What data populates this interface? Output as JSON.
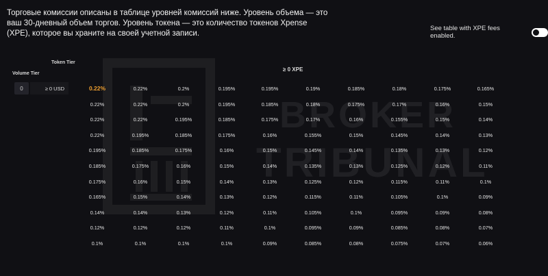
{
  "intro_text": "Торговые комиссии описаны в таблице уровней комиссий ниже. Уровень объема — это ваш 30-дневный объем торгов. Уровень токена — это количество токенов Xpense (XPE), которое вы храните на своей учетной записи.",
  "toggle": {
    "label": "See table with XPE fees enabled.",
    "enabled": false
  },
  "table": {
    "token_tier_header": "Token Tier",
    "volume_tier_header": "Volume Tier",
    "xpe_header": "≥ 0 XPE",
    "volume_value": "0",
    "usd_label": "≥ 0  USD",
    "highlight_color": "#f0a030",
    "rows": [
      [
        "0.22%",
        "0.22%",
        "0.2%",
        "0.195%",
        "0.195%",
        "0.19%",
        "0.185%",
        "0.18%",
        "0.175%",
        "0.165%"
      ],
      [
        "0.22%",
        "0.22%",
        "0.2%",
        "0.195%",
        "0.185%",
        "0.18%",
        "0.175%",
        "0.17%",
        "0.16%",
        "0.15%"
      ],
      [
        "0.22%",
        "0.22%",
        "0.195%",
        "0.185%",
        "0.175%",
        "0.17%",
        "0.16%",
        "0.155%",
        "0.15%",
        "0.14%"
      ],
      [
        "0.22%",
        "0.195%",
        "0.185%",
        "0.175%",
        "0.16%",
        "0.155%",
        "0.15%",
        "0.145%",
        "0.14%",
        "0.13%"
      ],
      [
        "0.195%",
        "0.185%",
        "0.175%",
        "0.16%",
        "0.15%",
        "0.145%",
        "0.14%",
        "0.135%",
        "0.13%",
        "0.12%"
      ],
      [
        "0.185%",
        "0.175%",
        "0.16%",
        "0.15%",
        "0.14%",
        "0.135%",
        "0.13%",
        "0.125%",
        "0.12%",
        "0.11%"
      ],
      [
        "0.175%",
        "0.16%",
        "0.15%",
        "0.14%",
        "0.13%",
        "0.125%",
        "0.12%",
        "0.115%",
        "0.11%",
        "0.1%"
      ],
      [
        "0.165%",
        "0.15%",
        "0.14%",
        "0.13%",
        "0.12%",
        "0.115%",
        "0.11%",
        "0.105%",
        "0.1%",
        "0.09%"
      ],
      [
        "0.14%",
        "0.14%",
        "0.13%",
        "0.12%",
        "0.11%",
        "0.105%",
        "0.1%",
        "0.095%",
        "0.09%",
        "0.08%"
      ],
      [
        "0.12%",
        "0.12%",
        "0.12%",
        "0.11%",
        "0.1%",
        "0.095%",
        "0.09%",
        "0.085%",
        "0.08%",
        "0.07%"
      ],
      [
        "0.1%",
        "0.1%",
        "0.1%",
        "0.1%",
        "0.09%",
        "0.085%",
        "0.08%",
        "0.075%",
        "0.07%",
        "0.06%"
      ]
    ]
  },
  "watermark": {
    "line1": "BROKER",
    "line2": "TRIBUNAL"
  }
}
